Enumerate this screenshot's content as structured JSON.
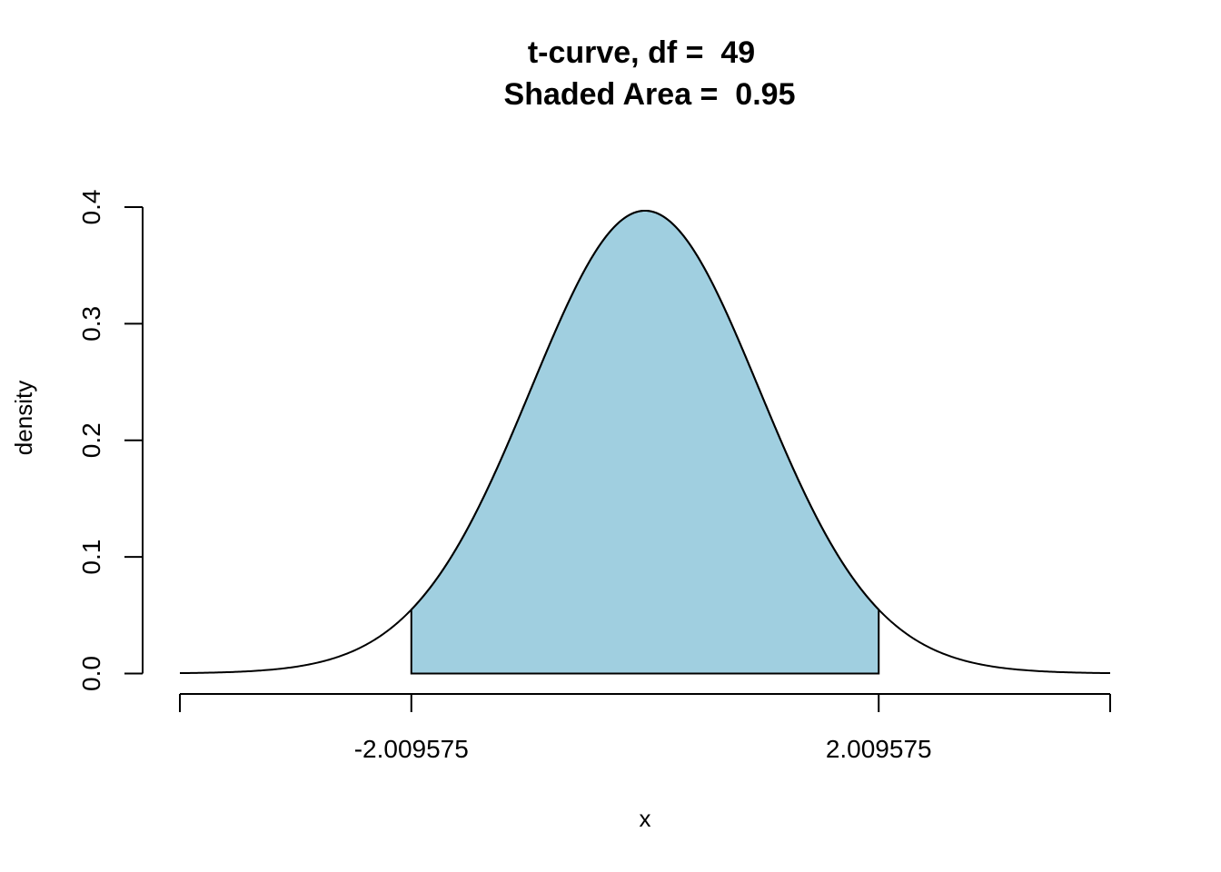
{
  "chart_data": {
    "type": "area",
    "title_line1": "t-curve, df =  49",
    "title_line2": "Shaded Area =  0.95",
    "xlabel": "x",
    "ylabel": "density",
    "df": 49,
    "shaded_area": 0.95,
    "shade_bounds": [
      -2.009575,
      2.009575
    ],
    "xlim": [
      -4,
      4
    ],
    "ylim": [
      0,
      0.4
    ],
    "x_tick_values": [
      -4,
      -2.009575,
      2.009575,
      4
    ],
    "x_tick_labels": [
      "",
      "-2.009575",
      "2.009575",
      ""
    ],
    "y_tick_values": [
      0,
      0.1,
      0.2,
      0.3,
      0.4
    ],
    "y_tick_labels": [
      "0.0",
      "0.1",
      "0.2",
      "0.3",
      "0.4"
    ],
    "grid": false,
    "colors": {
      "shade": "#a0cfe0",
      "line": "#000000"
    }
  }
}
